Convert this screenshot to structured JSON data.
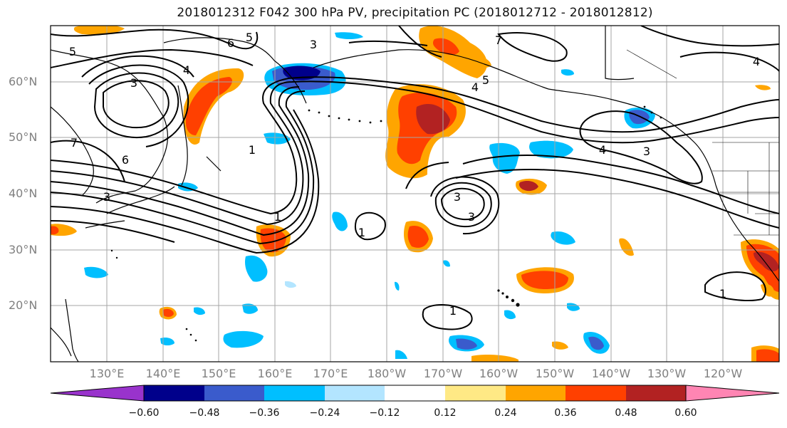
{
  "title": "2018012312 F042 300 hPa PV, precipitation PC (2018012712 - 2018012812)",
  "map": {
    "projection": "cylindrical",
    "lon_range": [
      120,
      250
    ],
    "lat_range": [
      10,
      70
    ],
    "grid_lines": true,
    "lat_labels": [
      "20°N",
      "30°N",
      "40°N",
      "50°N",
      "60°N"
    ],
    "lat_values": [
      20,
      30,
      40,
      50,
      60
    ],
    "lon_labels": [
      "130°E",
      "140°E",
      "150°E",
      "160°E",
      "170°E",
      "180°W",
      "170°W",
      "160°W",
      "150°W",
      "140°W",
      "130°W",
      "120°W"
    ],
    "lon_values": [
      130,
      140,
      150,
      160,
      170,
      180,
      190,
      200,
      210,
      220,
      230,
      240
    ],
    "contour_labels": [
      "5",
      "6",
      "5",
      "3",
      "4",
      "3",
      "7",
      "6",
      "3",
      "1",
      "1",
      "3",
      "1",
      "3",
      "4",
      "5",
      "7",
      "4",
      "4",
      "1",
      "1",
      "3"
    ]
  },
  "colorbar": {
    "ticks": [
      "−0.60",
      "−0.48",
      "−0.36",
      "−0.24",
      "−0.12",
      "0.12",
      "0.24",
      "0.36",
      "0.48",
      "0.60"
    ],
    "colors": [
      "#9933cc",
      "#00008b",
      "#3a5bcc",
      "#00bfff",
      "#b3e5ff",
      "#ffffff",
      "#ffe985",
      "#ffa500",
      "#ff4000",
      "#b22222",
      "#ff85b3"
    ]
  }
}
